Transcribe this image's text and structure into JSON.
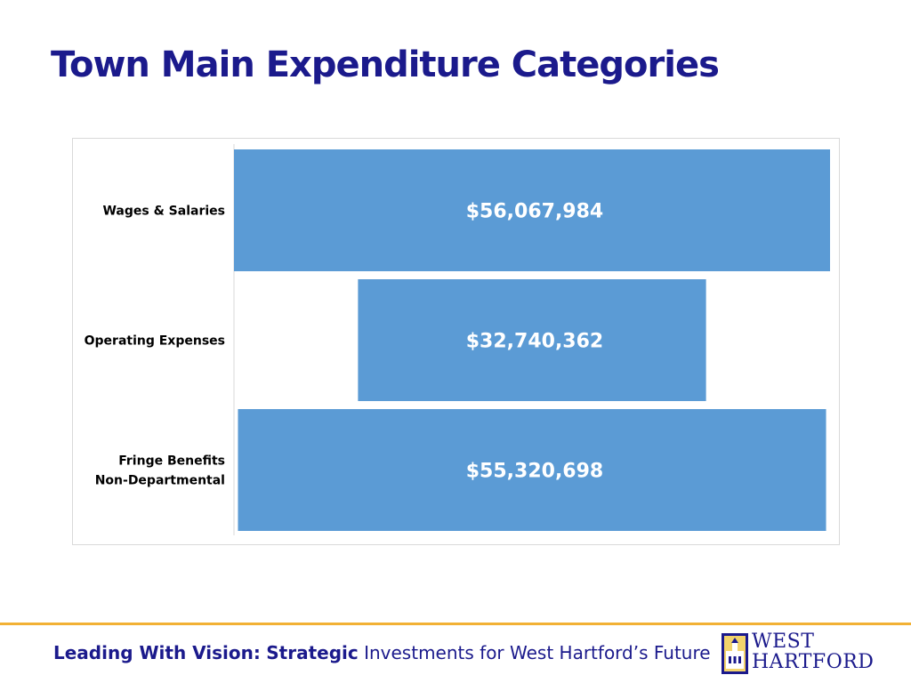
{
  "slide": {
    "title": "Town Main Expenditure Categories"
  },
  "footer": {
    "lead": "Leading With Vision:",
    "emph": "Strategic",
    "rest": "Investments for West Hartford’s Future"
  },
  "logo": {
    "line1": "WEST",
    "line2": "HARTFORD",
    "badge_icon": "town-hall-seal-icon"
  },
  "colors": {
    "title": "#1b1a8c",
    "bar": "#5b9bd5",
    "footer_rule": "#f2b134"
  },
  "chart_data": {
    "type": "bar",
    "orientation": "horizontal-funnel",
    "categories": [
      [
        "Wages & Salaries"
      ],
      [
        "Operating Expenses"
      ],
      [
        "Fringe Benefits",
        "Non-Departmental"
      ]
    ],
    "values": [
      56067984,
      32740362,
      55320698
    ],
    "data_labels": [
      "$56,067,984",
      "$32,740,362",
      "$55,320,698"
    ],
    "grid": false,
    "legend": "none"
  }
}
